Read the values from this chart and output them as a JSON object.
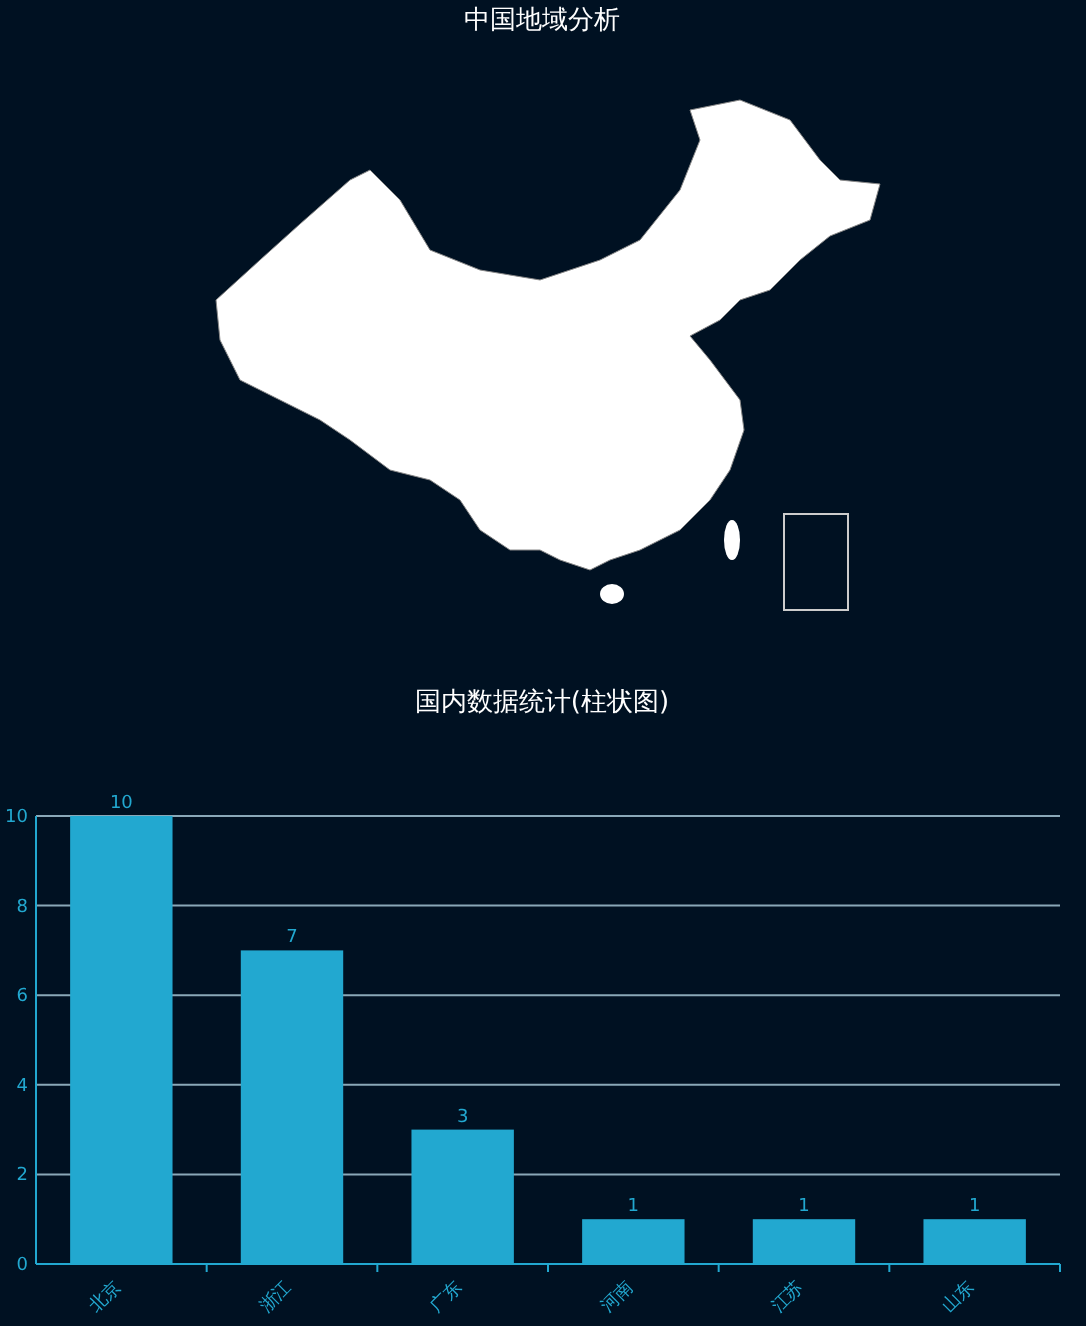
{
  "chart_data": [
    {
      "type": "other",
      "title": "中国地域分析"
    },
    {
      "type": "bar",
      "title": "国内数据统计(柱状图)",
      "categories": [
        "北京",
        "浙江",
        "广东",
        "河南",
        "江苏",
        "山东"
      ],
      "values": [
        10,
        7,
        3,
        1,
        1,
        1
      ],
      "color": "#22a8d0",
      "ylim": [
        0,
        10
      ],
      "yticks": [
        0,
        2,
        4,
        6,
        8,
        10
      ],
      "grid": "y",
      "data_labels": true
    }
  ]
}
